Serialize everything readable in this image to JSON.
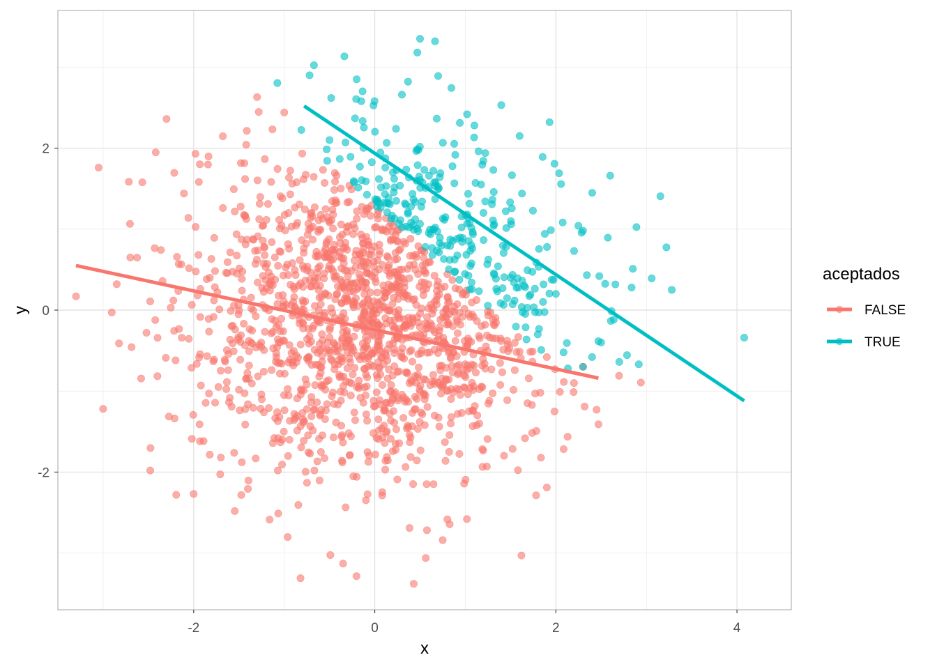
{
  "chart_data": {
    "type": "scatter",
    "title": "",
    "xlabel": "x",
    "ylabel": "y",
    "xlim": [
      -3.5,
      4.6
    ],
    "ylim": [
      -3.7,
      3.7
    ],
    "x_ticks": [
      -2,
      0,
      2,
      4
    ],
    "x_tick_labels": [
      "-2",
      "0",
      "2",
      "4"
    ],
    "y_ticks": [
      -2,
      0,
      2
    ],
    "y_tick_labels": [
      "-2",
      "0",
      "2"
    ],
    "grid": true,
    "legend": {
      "title": "aceptados",
      "position": "right",
      "entries": [
        {
          "label": "FALSE",
          "color": "#F8766D"
        },
        {
          "label": "TRUE",
          "color": "#00BFC4"
        }
      ]
    },
    "series": [
      {
        "name": "FALSE",
        "color": "#F8766D",
        "marker": "circle",
        "point_count_approx": 1500,
        "distribution": "bivariate standard normal sample (x,y ~ N(0,1)), points not accepted",
        "sample_points": [
          [
            -3.3,
            0.17
          ],
          [
            -3.05,
            1.76
          ],
          [
            -3.0,
            -1.22
          ],
          [
            -2.85,
            0.32
          ],
          [
            -2.7,
            0.65
          ],
          [
            -2.48,
            -1.98
          ],
          [
            -2.3,
            2.36
          ],
          [
            -2.2,
            -0.62
          ],
          [
            -2.0,
            -2.27
          ],
          [
            -1.98,
            1.93
          ],
          [
            -1.92,
            -0.93
          ],
          [
            -1.7,
            -1.82
          ],
          [
            -1.3,
            2.63
          ],
          [
            -1.0,
            2.44
          ],
          [
            -0.82,
            -3.31
          ],
          [
            -0.35,
            -3.13
          ],
          [
            0.43,
            -3.38
          ],
          [
            0.75,
            -2.84
          ],
          [
            1.62,
            -3.03
          ],
          [
            1.9,
            -2.19
          ],
          [
            2.45,
            -1.23
          ],
          [
            2.47,
            -1.41
          ],
          [
            2.3,
            -0.7
          ],
          [
            2.2,
            -0.9
          ],
          [
            1.9,
            -0.58
          ],
          [
            -1.02,
            1.38
          ],
          [
            0.0,
            0.0
          ],
          [
            0.3,
            0.5
          ],
          [
            -0.5,
            -0.5
          ],
          [
            0.8,
            -1.0
          ]
        ]
      },
      {
        "name": "TRUE",
        "color": "#00BFC4",
        "marker": "circle",
        "point_count_approx": 230,
        "distribution": "points from the same sample with x + y above roughly 1.3",
        "sample_points": [
          [
            -0.72,
            2.9
          ],
          [
            0.5,
            3.35
          ],
          [
            0.47,
            3.18
          ],
          [
            0.7,
            2.89
          ],
          [
            1.93,
            2.32
          ],
          [
            2.6,
            1.66
          ],
          [
            2.85,
            0.51
          ],
          [
            3.28,
            0.25
          ],
          [
            4.08,
            -0.34
          ],
          [
            2.7,
            -0.64
          ],
          [
            2.5,
            -0.4
          ],
          [
            2.4,
            -0.58
          ],
          [
            2.3,
            -0.7
          ],
          [
            2.3,
            0.98
          ],
          [
            1.6,
            2.15
          ],
          [
            1.1,
            2.28
          ],
          [
            0.3,
            2.66
          ],
          [
            -0.2,
            2.85
          ],
          [
            1.2,
            1.2
          ],
          [
            0.8,
            0.8
          ],
          [
            1.5,
            0.4
          ],
          [
            2.0,
            0.2
          ],
          [
            0.2,
            1.7
          ],
          [
            -0.5,
            2.1
          ],
          [
            1.8,
            -0.3
          ]
        ]
      }
    ],
    "fit_lines": [
      {
        "series": "FALSE",
        "color": "#F8766D",
        "x": [
          -3.3,
          2.47
        ],
        "y": [
          0.55,
          -0.84
        ]
      },
      {
        "series": "TRUE",
        "color": "#00BFC4",
        "x": [
          -0.78,
          4.08
        ],
        "y": [
          2.52,
          -1.12
        ]
      }
    ]
  }
}
